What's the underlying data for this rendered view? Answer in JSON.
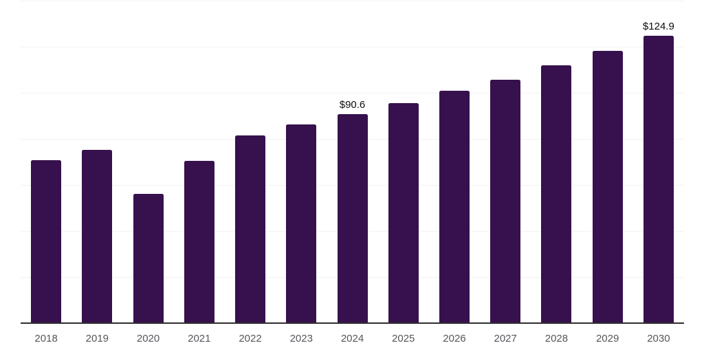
{
  "chart_data": {
    "type": "bar",
    "title": "",
    "xlabel": "",
    "ylabel": "",
    "categories": [
      "2018",
      "2019",
      "2020",
      "2021",
      "2022",
      "2023",
      "2024",
      "2025",
      "2026",
      "2027",
      "2028",
      "2029",
      "2030"
    ],
    "values": [
      70.7,
      75.1,
      56.0,
      70.4,
      81.6,
      86.3,
      90.6,
      95.6,
      100.8,
      105.8,
      112.0,
      118.3,
      124.9
    ],
    "annotations": [
      {
        "category": "2024",
        "text": "$90.6"
      },
      {
        "category": "2030",
        "text": "$124.9"
      }
    ],
    "ylim": [
      0,
      140
    ],
    "grid_step": 20,
    "grid": "horizontal gridlines only, no y-axis tick labels",
    "legend": "none",
    "colors": {
      "bar": "#36114d",
      "gridline": "#f2f2f2",
      "axis_line": "#2e2e2e",
      "tick_label": "#54565a",
      "value_label": "#0d0d0d",
      "background": "#ffffff"
    }
  }
}
